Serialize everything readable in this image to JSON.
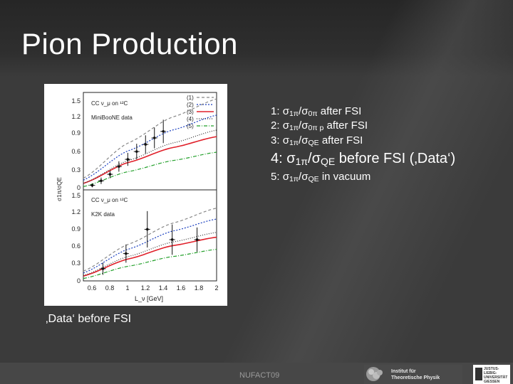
{
  "slide": {
    "title": "Pion Production",
    "bottom_text": "‚Data‘ before FSI",
    "footer": "NUFACT09"
  },
  "legend": [
    {
      "prefix": "1: ",
      "num": "1π",
      "den": "0π",
      "suffix": " after FSI"
    },
    {
      "prefix": "2: ",
      "num": "1π",
      "den": "0π p",
      "suffix": " after FSI"
    },
    {
      "prefix": "3: ",
      "num": "1π",
      "den": "QE",
      "suffix": " after FSI"
    },
    {
      "prefix": "4: ",
      "num": "1π",
      "den": "QE",
      "suffix": " before FSI (‚Data‘)"
    },
    {
      "prefix": "5: ",
      "num": "1π",
      "den": "QE",
      "suffix": " in vacuum"
    }
  ],
  "logos": {
    "itp_line1": "Institut für",
    "itp_line2": "Theoretische Physik",
    "uni_line1": "JUSTUS-LIEBIG-",
    "uni_line2": "UNIVERSITÄT",
    "uni_line3": "GIESSEN"
  },
  "colors": {
    "curve1": "#888888",
    "curve2": "#1a3fbf",
    "curve3": "#e0202a",
    "curve4": "#2f2f2f",
    "curve5": "#22a02a"
  },
  "chart_data": [
    {
      "type": "line",
      "title": "CC ν_μ on ¹²C",
      "data_label": "MiniBooNE data",
      "xlabel": "",
      "ylabel": "σ1π/σQE",
      "xlim": [
        0.5,
        2.0
      ],
      "ylim": [
        0,
        1.5
      ],
      "yticks": [
        "0",
        "0.3",
        "0.6",
        "0.9",
        "1.2",
        "1.5"
      ],
      "legend": [
        "(1)",
        "(2)",
        "(3)",
        "(4)",
        "(5)"
      ],
      "series": [
        {
          "name": "(1)",
          "x": [
            0.5,
            1.0,
            1.5,
            2.0
          ],
          "y": [
            0.18,
            0.72,
            1.12,
            1.4
          ]
        },
        {
          "name": "(2)",
          "x": [
            0.5,
            1.0,
            1.5,
            2.0
          ],
          "y": [
            0.15,
            0.6,
            0.92,
            1.15
          ]
        },
        {
          "name": "(3)",
          "x": [
            0.5,
            1.0,
            1.5,
            2.0
          ],
          "y": [
            0.1,
            0.42,
            0.65,
            0.82
          ]
        },
        {
          "name": "(4)",
          "x": [
            0.5,
            1.0,
            1.5,
            2.0
          ],
          "y": [
            0.1,
            0.45,
            0.72,
            0.92
          ]
        },
        {
          "name": "(5)",
          "x": [
            0.5,
            1.0,
            1.5,
            2.0
          ],
          "y": [
            0.05,
            0.28,
            0.45,
            0.58
          ]
        }
      ],
      "points": {
        "x": [
          0.6,
          0.7,
          0.8,
          0.9,
          1.0,
          1.1,
          1.2,
          1.3,
          1.4
        ],
        "y": [
          0.07,
          0.14,
          0.24,
          0.36,
          0.47,
          0.59,
          0.7,
          0.8,
          0.9
        ],
        "err": [
          0.03,
          0.05,
          0.06,
          0.08,
          0.1,
          0.12,
          0.14,
          0.16,
          0.18
        ]
      }
    },
    {
      "type": "line",
      "title": "CC ν_μ on ¹²C",
      "data_label": "K2K data",
      "xlabel": "L_ν [GeV]",
      "ylabel": "σ1π/σQE",
      "xlim": [
        0.5,
        2.0
      ],
      "ylim": [
        0,
        1.5
      ],
      "xticks": [
        "0.6",
        "0.8",
        "1",
        "1.2",
        "1.4",
        "1.6",
        "1.8",
        "2"
      ],
      "yticks": [
        "0",
        "0.3",
        "0.6",
        "0.9",
        "1.2",
        "1.5"
      ],
      "series": [
        {
          "name": "(1)",
          "x": [
            0.5,
            1.0,
            1.5,
            2.0
          ],
          "y": [
            0.16,
            0.6,
            0.95,
            1.2
          ]
        },
        {
          "name": "(2)",
          "x": [
            0.5,
            1.0,
            1.5,
            2.0
          ],
          "y": [
            0.13,
            0.52,
            0.82,
            1.02
          ]
        },
        {
          "name": "(3)",
          "x": [
            0.5,
            1.0,
            1.5,
            2.0
          ],
          "y": [
            0.08,
            0.36,
            0.58,
            0.72
          ]
        },
        {
          "name": "(4)",
          "x": [
            0.5,
            1.0,
            1.5,
            2.0
          ],
          "y": [
            0.09,
            0.4,
            0.64,
            0.8
          ]
        },
        {
          "name": "(5)",
          "x": [
            0.5,
            1.0,
            1.5,
            2.0
          ],
          "y": [
            0.04,
            0.24,
            0.4,
            0.52
          ]
        }
      ],
      "points": {
        "x": [
          0.72,
          0.98,
          1.22,
          1.5,
          1.78
        ],
        "y": [
          0.2,
          0.45,
          0.85,
          0.68,
          0.68
        ],
        "err": [
          0.1,
          0.15,
          0.3,
          0.25,
          0.2
        ]
      }
    }
  ]
}
